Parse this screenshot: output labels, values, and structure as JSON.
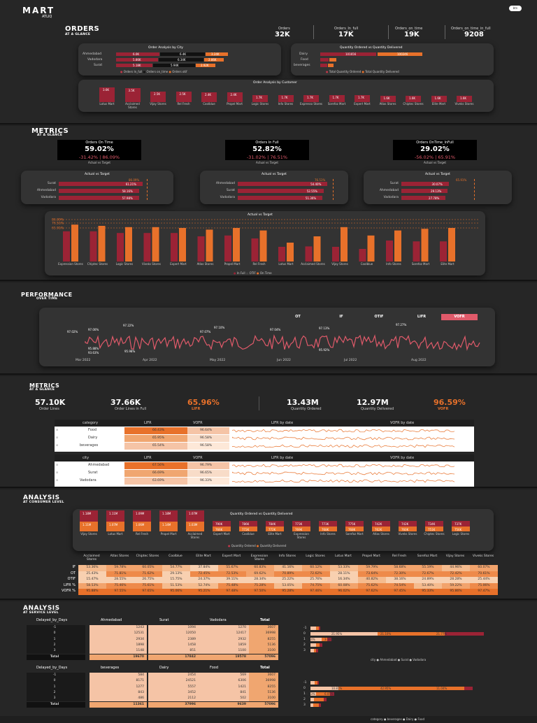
{
  "brand": {
    "name": "MART",
    "sub": "ATLIQ",
    "badge": "btn"
  },
  "orders": {
    "title": "ORDERS",
    "subtitle": "AT A GLANCE",
    "kpis": [
      {
        "label": "Orders",
        "value": "32K"
      },
      {
        "label": "Orders_In_full",
        "value": "17K"
      },
      {
        "label": "Orders_on_time",
        "value": "19K"
      },
      {
        "label": "Orders_on_time_in_full",
        "value": "9208"
      }
    ],
    "city_chart": {
      "title": "Order Analysis by City",
      "rows": [
        {
          "city": "Ahmedabad",
          "a": "6.0K",
          "b": "6.4K",
          "c": "3.24K"
        },
        {
          "city": "Vadodara",
          "a": "5.86K",
          "b": "6.34K",
          "c": "2.86K"
        },
        {
          "city": "Surat",
          "a": "5.18K",
          "b": "5.94K",
          "c": "2.92K"
        }
      ],
      "legend": [
        "Orders In_full",
        "Orders on_time",
        "Orders otif"
      ]
    },
    "qty_chart": {
      "title": "Quantity Ordered vs Quantity Delivered",
      "rows": [
        {
          "cat": "Dairy",
          "a": "101656",
          "b": "100246"
        },
        {
          "cat": "Food",
          "a": "",
          "b": ""
        },
        {
          "cat": "beverages",
          "a": "",
          "b": ""
        }
      ],
      "legend": [
        "Total Quantity Ordered",
        "Total Quantity Delivered"
      ]
    },
    "customer_chart": {
      "title": "Order Analysis by Customer",
      "bars": [
        {
          "name": "Lotus Mart",
          "v": "3.6K",
          "h": 0.95
        },
        {
          "name": "Acclaimed Stores",
          "v": "3.5K",
          "h": 0.92
        },
        {
          "name": "Vijay Stores",
          "v": "2.5K",
          "h": 0.66
        },
        {
          "name": "Rel Fresh",
          "v": "2.5K",
          "h": 0.66
        },
        {
          "name": "Coolblue",
          "v": "2.4K",
          "h": 0.63
        },
        {
          "name": "Propel Mart",
          "v": "2.4K",
          "h": 0.63
        },
        {
          "name": "Logic Stores",
          "v": "1.7K",
          "h": 0.45
        },
        {
          "name": "Info Stores",
          "v": "1.7K",
          "h": 0.45
        },
        {
          "name": "Expresso Stores",
          "v": "1.7K",
          "h": 0.45
        },
        {
          "name": "Sorefoz Mart",
          "v": "1.7K",
          "h": 0.45
        },
        {
          "name": "Expert Mart",
          "v": "1.7K",
          "h": 0.45
        },
        {
          "name": "Atlas Stores",
          "v": "1.6K",
          "h": 0.42
        },
        {
          "name": "Chiptec Stores",
          "v": "1.6K",
          "h": 0.42
        },
        {
          "name": "Elite Mart",
          "v": "1.6K",
          "h": 0.42
        },
        {
          "name": "Viveks Stores",
          "v": "1.6K",
          "h": 0.42
        }
      ]
    }
  },
  "metrics1": {
    "title": "METRICS",
    "subtitle": "AT A GLANCE",
    "kpis": [
      {
        "label": "Orders On Time",
        "value": "59.02%",
        "sub": "-31.42% | 86.09%",
        "cap": "Actual vs Target"
      },
      {
        "label": "Orders In Full",
        "value": "52.82%",
        "sub": "-31.02% | 76.51%",
        "cap": "Actual vs Target"
      },
      {
        "label": "Orders OnTime_InFull",
        "value": "29.02%",
        "sub": "-56.02% | 65.91%",
        "cap": "Actual vs Target"
      }
    ],
    "avt": [
      {
        "title": "Actual vs Target",
        "target": "86.09%",
        "rows": [
          {
            "c": "Surat",
            "v": "61.21%",
            "f": 0.7
          },
          {
            "c": "Ahmedabad",
            "v": "58.16%",
            "f": 0.67
          },
          {
            "c": "Vadodara",
            "v": "57.98%",
            "f": 0.67
          }
        ]
      },
      {
        "title": "Actual vs Target",
        "target": "76.51%",
        "rows": [
          {
            "c": "Ahmedabad",
            "v": "54.40%",
            "f": 0.71
          },
          {
            "c": "Surat",
            "v": "52.55%",
            "f": 0.68
          },
          {
            "c": "Vadodara",
            "v": "51.36%",
            "f": 0.67
          }
        ]
      },
      {
        "title": "Actual vs Target",
        "target": "65.91%",
        "rows": [
          {
            "c": "Surat",
            "v": "30.07%",
            "f": 0.45
          },
          {
            "c": "Ahmedabad",
            "v": "29.13%",
            "f": 0.44
          },
          {
            "c": "Vadodara",
            "v": "27.78%",
            "f": 0.42
          }
        ]
      }
    ],
    "combo": {
      "title": "Actual vs Target",
      "refs": [
        "86.09%",
        "76.51%",
        "65.91%"
      ],
      "legend": [
        "In Full",
        "OTIF",
        "On Time"
      ],
      "stores": [
        "Expression Stores",
        "Chiptec Stores",
        "Logic Stores",
        "Viveks Stores",
        "Expert Mart",
        "Atlas Stores",
        "Propel Mart",
        "Rel Fresh",
        "Lotus Mart",
        "Acclaimed Stores",
        "Vijay Stores",
        "Coolblue",
        "Info Stores",
        "Sorefoz Mart",
        "Elite Mart"
      ],
      "infull": [
        0.72,
        0.72,
        0.68,
        0.68,
        0.68,
        0.6,
        0.62,
        0.55,
        0.35,
        0.36,
        0.35,
        0.3,
        0.5,
        0.48,
        0.48
      ],
      "ontime": [
        0.88,
        0.85,
        0.82,
        0.82,
        0.8,
        0.76,
        0.8,
        0.74,
        0.45,
        0.6,
        0.82,
        0.62,
        0.74,
        0.78,
        0.8
      ]
    }
  },
  "performance": {
    "title": "PERFORMANCE",
    "subtitle": "OVER TIME",
    "tabs": [
      "OT",
      "IF",
      "OTIF",
      "LIFR",
      "VOFR"
    ],
    "active": "VOFR",
    "xlabels": [
      "Mar 2022",
      "Apr 2022",
      "May 2022",
      "Jun 2022",
      "Jul 2022",
      "Aug 2022"
    ],
    "points": [
      "97.00%",
      "95.88%",
      "97.22%",
      "95.98%",
      "97.10%",
      "97.04%",
      "97.13%",
      "95.92%",
      "97.27%",
      "93.63%",
      "97.02%",
      "97.07%"
    ]
  },
  "metrics2": {
    "title": "METRICS",
    "subtitle": "AT A GLANCE",
    "kpis": [
      {
        "label": "Order Lines",
        "value": "57.10K"
      },
      {
        "label": "Order Lines in Full",
        "value": "37.66K"
      },
      {
        "label": "LIFR",
        "value": "65.96%",
        "accent": true
      },
      {
        "label": "Quantity Ordered",
        "value": "13.43M"
      },
      {
        "label": "Quantity Delivered",
        "value": "12.97M"
      },
      {
        "label": "VOFR",
        "value": "96.59%",
        "accent": true
      }
    ],
    "cat_table": {
      "headers": [
        "category",
        "LIFR",
        "VOFR",
        "LIFR by date",
        "VOFR by date"
      ],
      "rows": [
        [
          "Food",
          "66.43%",
          "96.64%"
        ],
        [
          "Dairy",
          "65.95%",
          "96.58%"
        ],
        [
          "beverages",
          "65.54%",
          "96.58%"
        ]
      ]
    },
    "city_table": {
      "headers": [
        "city",
        "LIFR",
        "VOFR",
        "LIFR by date",
        "VOFR by date"
      ],
      "rows": [
        [
          "Ahmedabad",
          "67.56%",
          "96.79%"
        ],
        [
          "Surat",
          "66.69%",
          "96.65%"
        ],
        [
          "Vadodara",
          "63.69%",
          "96.33%"
        ]
      ]
    }
  },
  "analysis1": {
    "title": "ANALYSIS",
    "subtitle": "AT CONSUMER LEVEL",
    "chart_title": "Quantity Ordered vs Quantity Delivered",
    "legend": [
      "Quantity Ordered",
      "Quantity Delivered"
    ],
    "chart_data": {
      "type": "bar",
      "categories": [
        "Vijay Stores",
        "Lotus Mart",
        "Rel Fresh",
        "Propel Mart",
        "Acclaimed Stores",
        "Expert Mart",
        "Coolblue",
        "Elite Mart",
        "Expression Stores",
        "Info Stores",
        "Sorefoz Mart",
        "Atlas Stores",
        "Viveks Stores",
        "Chiptec Stores",
        "Logic Stores"
      ],
      "ordered_labels": [
        "1.18M",
        "1.11M",
        "1.09M",
        "1.18M",
        "1.07M",
        "790K",
        "786K",
        "784K",
        "773K",
        "773K",
        "775K",
        "742K",
        "742K",
        "734K",
        "737K"
      ],
      "delivered_labels": [
        "1.11M",
        "1.07M",
        "1.06M",
        "1.14M",
        "1.03M",
        "766K",
        "772K",
        "772K",
        "769K",
        "768K",
        "768K",
        "762K",
        "760K",
        "751K",
        "756K"
      ]
    },
    "matrix": {
      "cols": [
        "Acclaimed Stores",
        "Atlas Stores",
        "Chiptec Stores",
        "Coolblue",
        "Elite Mart",
        "Expert Mart",
        "Expression Stores",
        "Info Stores",
        "Logic Stores",
        "Lotus Mart",
        "Propel Mart",
        "Rel Fresh",
        "Sorefoz Mart",
        "Vijay Stores",
        "Viveks Stores"
      ],
      "rows": [
        {
          "k": "IF",
          "v": [
            "53.36%",
            "59.78%",
            "60.05%",
            "54.77%",
            "37.84%",
            "55.67%",
            "60.83%",
            "41.16%",
            "60.12%",
            "53.33%",
            "59.79%",
            "58.68%",
            "55.19%",
            "44.96%",
            "60.07%"
          ]
        },
        {
          "k": "OT",
          "v": [
            "25.43%",
            "71.81%",
            "71.62%",
            "29.13%",
            "72.45%",
            "72.53%",
            "69.62%",
            "70.89%",
            "72.62%",
            "28.11%",
            "73.64%",
            "72.30%",
            "72.67%",
            "72.42%",
            "70.61%"
          ]
        },
        {
          "k": "OTIF",
          "v": [
            "15.47%",
            "28.55%",
            "26.75%",
            "15.75%",
            "24.37%",
            "39.11%",
            "28.34%",
            "25.22%",
            "25.76%",
            "16.34%",
            "40.82%",
            "38.16%",
            "24.89%",
            "28.28%",
            "25.44%"
          ]
        },
        {
          "k": "LIFR %",
          "v": [
            "58.53%",
            "75.46%",
            "75.61%",
            "51.53%",
            "52.74%",
            "75.48%",
            "75.28%",
            "53.05%",
            "74.75%",
            "60.08%",
            "75.62%",
            "74.54%",
            "53.40%",
            "59.22%",
            "75.06%"
          ]
        },
        {
          "k": "VOFR %",
          "v": [
            "95.88%",
            "97.55%",
            "97.65%",
            "95.06%",
            "95.21%",
            "97.48%",
            "97.50%",
            "95.28%",
            "97.46%",
            "96.02%",
            "97.62%",
            "97.45%",
            "95.33%",
            "95.86%",
            "97.47%"
          ]
        }
      ]
    }
  },
  "analysis2": {
    "title": "ANALYSIS",
    "subtitle": "AT SERVICE LEVEL",
    "t1": {
      "headers": [
        "Delayed_by_Days",
        "Ahmedabad",
        "Surat",
        "Vadodara",
        "Total"
      ],
      "rows": [
        [
          "-1",
          "1243",
          "1094",
          "1270",
          "3607"
        ],
        [
          "0",
          "12531",
          "12050",
          "12417",
          "36998"
        ],
        [
          "1",
          "2934",
          "2389",
          "2932",
          "8255"
        ],
        [
          "2",
          "1898",
          "1458",
          "1859",
          "5136"
        ],
        [
          "3",
          "1148",
          "851",
          "1100",
          "3100"
        ],
        [
          "Total",
          "19670",
          "17842",
          "19578",
          "57096"
        ]
      ]
    },
    "t2": {
      "headers": [
        "Delayed_by_Days",
        "beverages",
        "Dairy",
        "Food",
        "Total"
      ],
      "rows": [
        [
          "-1",
          "584",
          "2454",
          "569",
          "3607"
        ],
        [
          "0",
          "8171",
          "24521",
          "6306",
          "36998"
        ],
        [
          "1",
          "1277",
          "5557",
          "1421",
          "8255"
        ],
        [
          "2",
          "843",
          "3452",
          "841",
          "5136"
        ],
        [
          "3",
          "486",
          "2112",
          "502",
          "3100"
        ],
        [
          "Total",
          "11361",
          "37996",
          "9639",
          "57096"
        ]
      ]
    },
    "c1": {
      "labels": [
        "-1",
        "0",
        "1",
        "2",
        "3"
      ],
      "vals": [
        "21.95%",
        "21.10%",
        "21.77%",
        "5.14%",
        "3.14%"
      ],
      "legend_title": "city",
      "legend": [
        "Ahmedabad",
        "Surat",
        "Vadodara"
      ]
    },
    "c2": {
      "labels": [
        "-1",
        "0",
        "1",
        "2",
        "3"
      ],
      "vals": [
        "10.81%",
        "42.95%",
        "11.04%",
        "9.73%",
        "6.05%"
      ],
      "legend_title": "category",
      "legend": [
        "beverages",
        "Dairy",
        "Food"
      ]
    }
  },
  "colors": {
    "dark_red": "#9b2335",
    "orange": "#e8712a",
    "pink": "#e05a6a",
    "peach": "#f5c4a6"
  }
}
